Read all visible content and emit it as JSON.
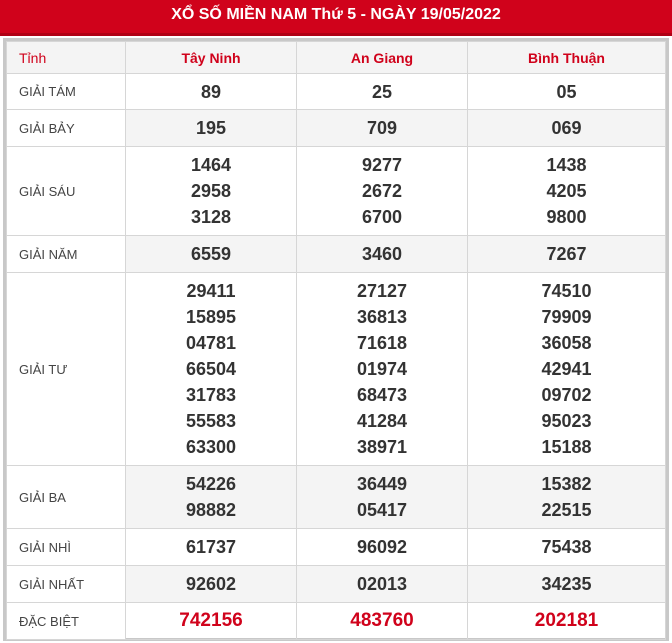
{
  "title": "XỔ SỐ MIỀN NAM Thứ 5 - NGÀY 19/05/2022",
  "header": {
    "label": "Tỉnh",
    "provinces": [
      "Tây Ninh",
      "An Giang",
      "Bình Thuận"
    ]
  },
  "colors": {
    "accent": "#d0021b",
    "row_alt": "#f4f4f4"
  },
  "rows": [
    {
      "label": "GIẢI TÁM",
      "values": [
        [
          "89"
        ],
        [
          "25"
        ],
        [
          "05"
        ]
      ],
      "h": 36
    },
    {
      "label": "GIẢI BẢY",
      "values": [
        [
          "195"
        ],
        [
          "709"
        ],
        [
          "069"
        ]
      ],
      "h": 37
    },
    {
      "label": "GIẢI SÁU",
      "values": [
        [
          "1464",
          "2958",
          "3128"
        ],
        [
          "9277",
          "2672",
          "6700"
        ],
        [
          "1438",
          "4205",
          "9800"
        ]
      ],
      "h": 89
    },
    {
      "label": "GIẢI NĂM",
      "values": [
        [
          "6559"
        ],
        [
          "3460"
        ],
        [
          "7267"
        ]
      ],
      "h": 37
    },
    {
      "label": "GIẢI TƯ",
      "values": [
        [
          "29411",
          "15895",
          "04781",
          "66504",
          "31783",
          "55583",
          "63300"
        ],
        [
          "27127",
          "36813",
          "71618",
          "01974",
          "68473",
          "41284",
          "38971"
        ],
        [
          "74510",
          "79909",
          "36058",
          "42941",
          "09702",
          "95023",
          "15188"
        ]
      ],
      "h": 193
    },
    {
      "label": "GIẢI BA",
      "values": [
        [
          "54226",
          "98882"
        ],
        [
          "36449",
          "05417"
        ],
        [
          "15382",
          "22515"
        ]
      ],
      "h": 63
    },
    {
      "label": "GIẢI NHÌ",
      "values": [
        [
          "61737"
        ],
        [
          "96092"
        ],
        [
          "75438"
        ]
      ],
      "h": 37
    },
    {
      "label": "GIẢI NHẤT",
      "values": [
        [
          "92602"
        ],
        [
          "02013"
        ],
        [
          "34235"
        ]
      ],
      "h": 37
    },
    {
      "label": "ĐẶC BIỆT",
      "values": [
        [
          "742156"
        ],
        [
          "483760"
        ],
        [
          "202181"
        ]
      ],
      "h": 37,
      "special": true
    }
  ]
}
